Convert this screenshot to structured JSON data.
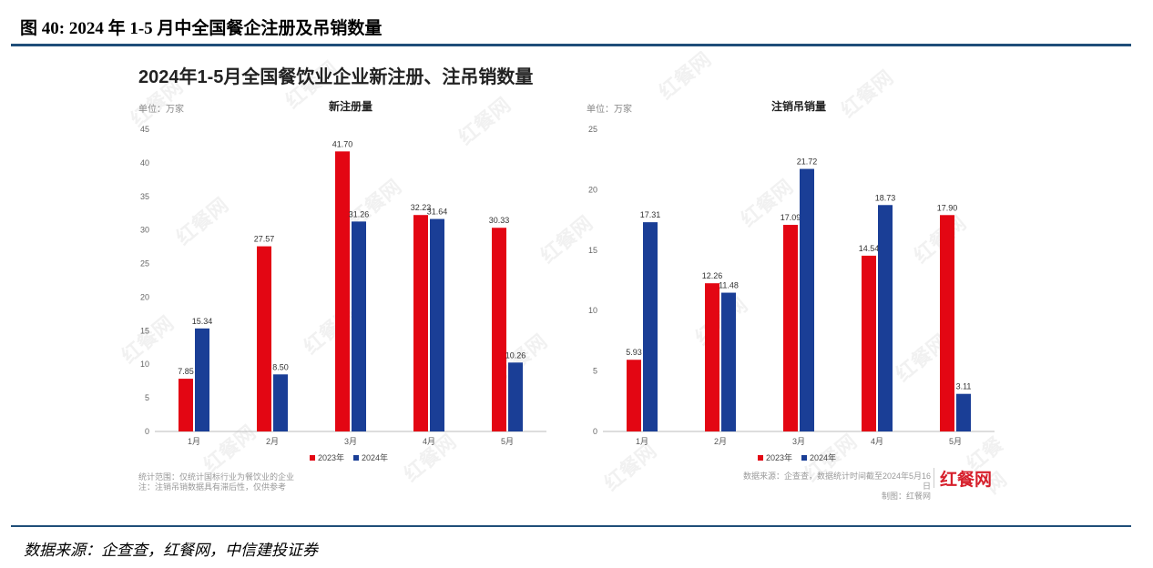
{
  "figure_title": "图 40: 2024 年 1-5 月中全国餐企注册及吊销数量",
  "panel_title": "2024年1-5月全国餐饮业企业新注册、注吊销数量",
  "watermark": "红餐网",
  "source_line": "数据来源：企查查，红餐网，中信建投证券",
  "left_note": [
    "统计范围：仅统计国标行业为餐饮业的企业",
    "注：注销吊销数据具有滞后性，仅供参考"
  ],
  "right_note": [
    "数据来源：企查查，数据统计时间截至2024年5月16日",
    "制图：红餐网"
  ],
  "logo_text": "红餐网",
  "colors": {
    "red": "#e30613",
    "blue": "#1a3e96",
    "accent_rule": "#1f4e79"
  },
  "chart_data": [
    {
      "type": "bar",
      "title": "新注册量",
      "unit_label": "单位：万家",
      "categories": [
        "1月",
        "2月",
        "3月",
        "4月",
        "5月"
      ],
      "ylim": [
        0,
        45
      ],
      "yticks": [
        0,
        5,
        10,
        15,
        20,
        25,
        30,
        35,
        40,
        45
      ],
      "grid": false,
      "legend_position": "bottom-center",
      "series": [
        {
          "name": "2023年",
          "color": "#e30613",
          "values": [
            7.85,
            27.57,
            41.7,
            32.23,
            30.33
          ],
          "labels": [
            "7.85",
            "27.57",
            "41.70",
            "32.23",
            "30.33"
          ]
        },
        {
          "name": "2024年",
          "color": "#1a3e96",
          "values": [
            15.34,
            8.5,
            31.26,
            31.64,
            10.26
          ],
          "labels": [
            "15.34",
            "8.50",
            "31.26",
            "31.64",
            "10.26"
          ]
        }
      ]
    },
    {
      "type": "bar",
      "title": "注销吊销量",
      "unit_label": "单位：万家",
      "categories": [
        "1月",
        "2月",
        "3月",
        "4月",
        "5月"
      ],
      "ylim": [
        0,
        25
      ],
      "yticks": [
        0,
        5,
        10,
        15,
        20,
        25
      ],
      "grid": false,
      "legend_position": "bottom-center",
      "series": [
        {
          "name": "2023年",
          "color": "#e30613",
          "values": [
            5.93,
            12.26,
            17.09,
            14.54,
            17.9
          ],
          "labels": [
            "5.93",
            "12.26",
            "17.09",
            "14.54",
            "17.90"
          ]
        },
        {
          "name": "2024年",
          "color": "#1a3e96",
          "values": [
            17.31,
            11.48,
            21.72,
            18.73,
            3.11
          ],
          "labels": [
            "17.31",
            "11.48",
            "21.72",
            "18.73",
            "3.11"
          ]
        }
      ]
    }
  ]
}
